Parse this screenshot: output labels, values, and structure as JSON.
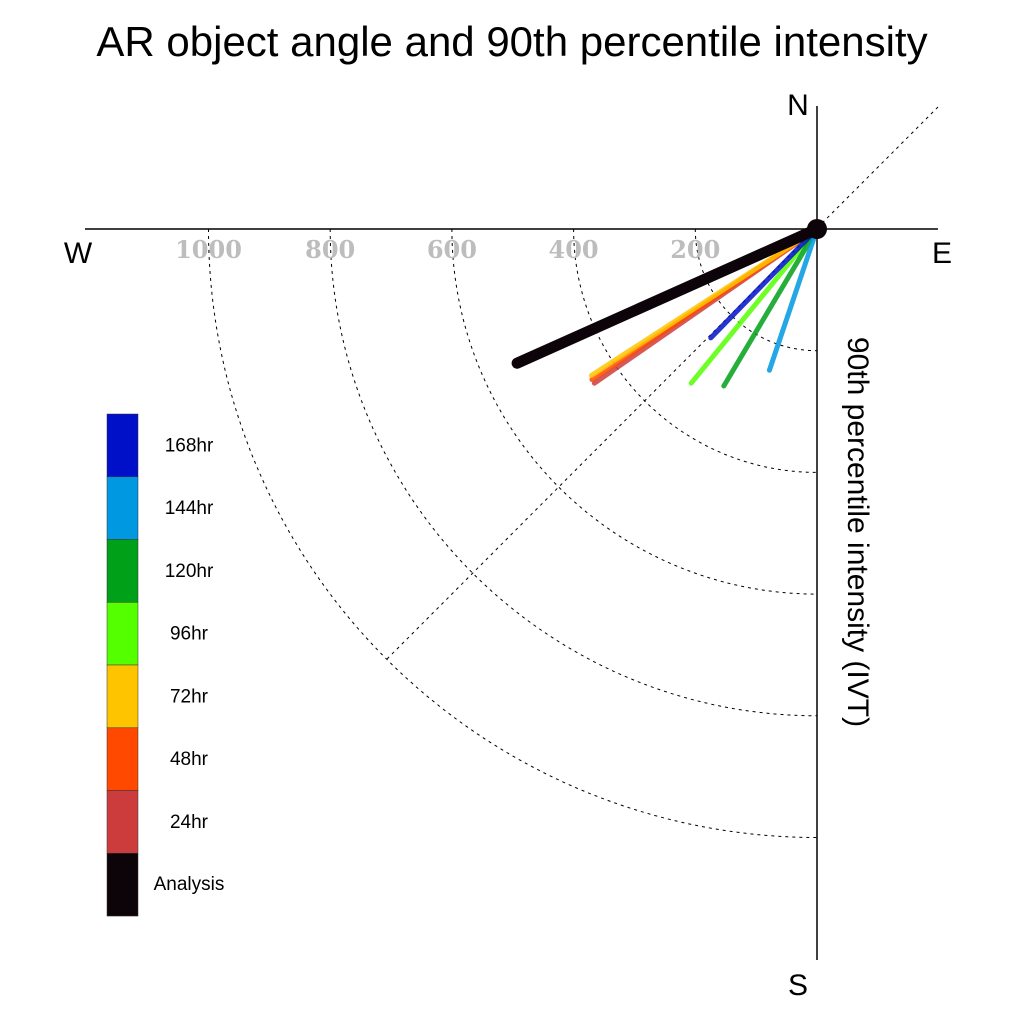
{
  "chart_data": {
    "type": "polar-vector",
    "title": "AR object angle and 90th percentile intensity",
    "radial_label": "90th percentile intensity (IVT)",
    "compass": {
      "north": "N",
      "south": "S",
      "east": "E",
      "west": "W"
    },
    "ring_values": [
      200,
      400,
      600,
      800,
      1000
    ],
    "ring_labels": [
      "200",
      "400",
      "600",
      "800",
      "1000"
    ],
    "radial_max": 1000,
    "angle_convention": "degrees below west (clockwise from W toward S)",
    "series": [
      {
        "name": "Analysis",
        "color": "#0c0409",
        "angle_deg": 24.1,
        "intensity": 540
      },
      {
        "name": "24hr",
        "color": "#cc3c3c",
        "angle_deg": 34.7,
        "intensity": 445
      },
      {
        "name": "48hr",
        "color": "#ff4800",
        "angle_deg": 33.8,
        "intensity": 445
      },
      {
        "name": "72hr",
        "color": "#ffc400",
        "angle_deg": 33.0,
        "intensity": 442
      },
      {
        "name": "96hr",
        "color": "#54ff00",
        "angle_deg": 50.8,
        "intensity": 327
      },
      {
        "name": "120hr",
        "color": "#00a018",
        "angle_deg": 59.3,
        "intensity": 300
      },
      {
        "name": "144hr",
        "color": "#0098e0",
        "angle_deg": 71.4,
        "intensity": 245
      },
      {
        "name": "168hr",
        "color": "#0010c8",
        "angle_deg": 45.7,
        "intensity": 250
      }
    ],
    "legend": {
      "placement": "left",
      "entries": [
        "168hr",
        "144hr",
        "120hr",
        "96hr",
        "72hr",
        "48hr",
        "24hr",
        "Analysis"
      ],
      "colors": [
        "#0010c8",
        "#0098e0",
        "#00a018",
        "#54ff00",
        "#ffc400",
        "#ff4800",
        "#cc3c3c",
        "#0c0409"
      ]
    }
  }
}
